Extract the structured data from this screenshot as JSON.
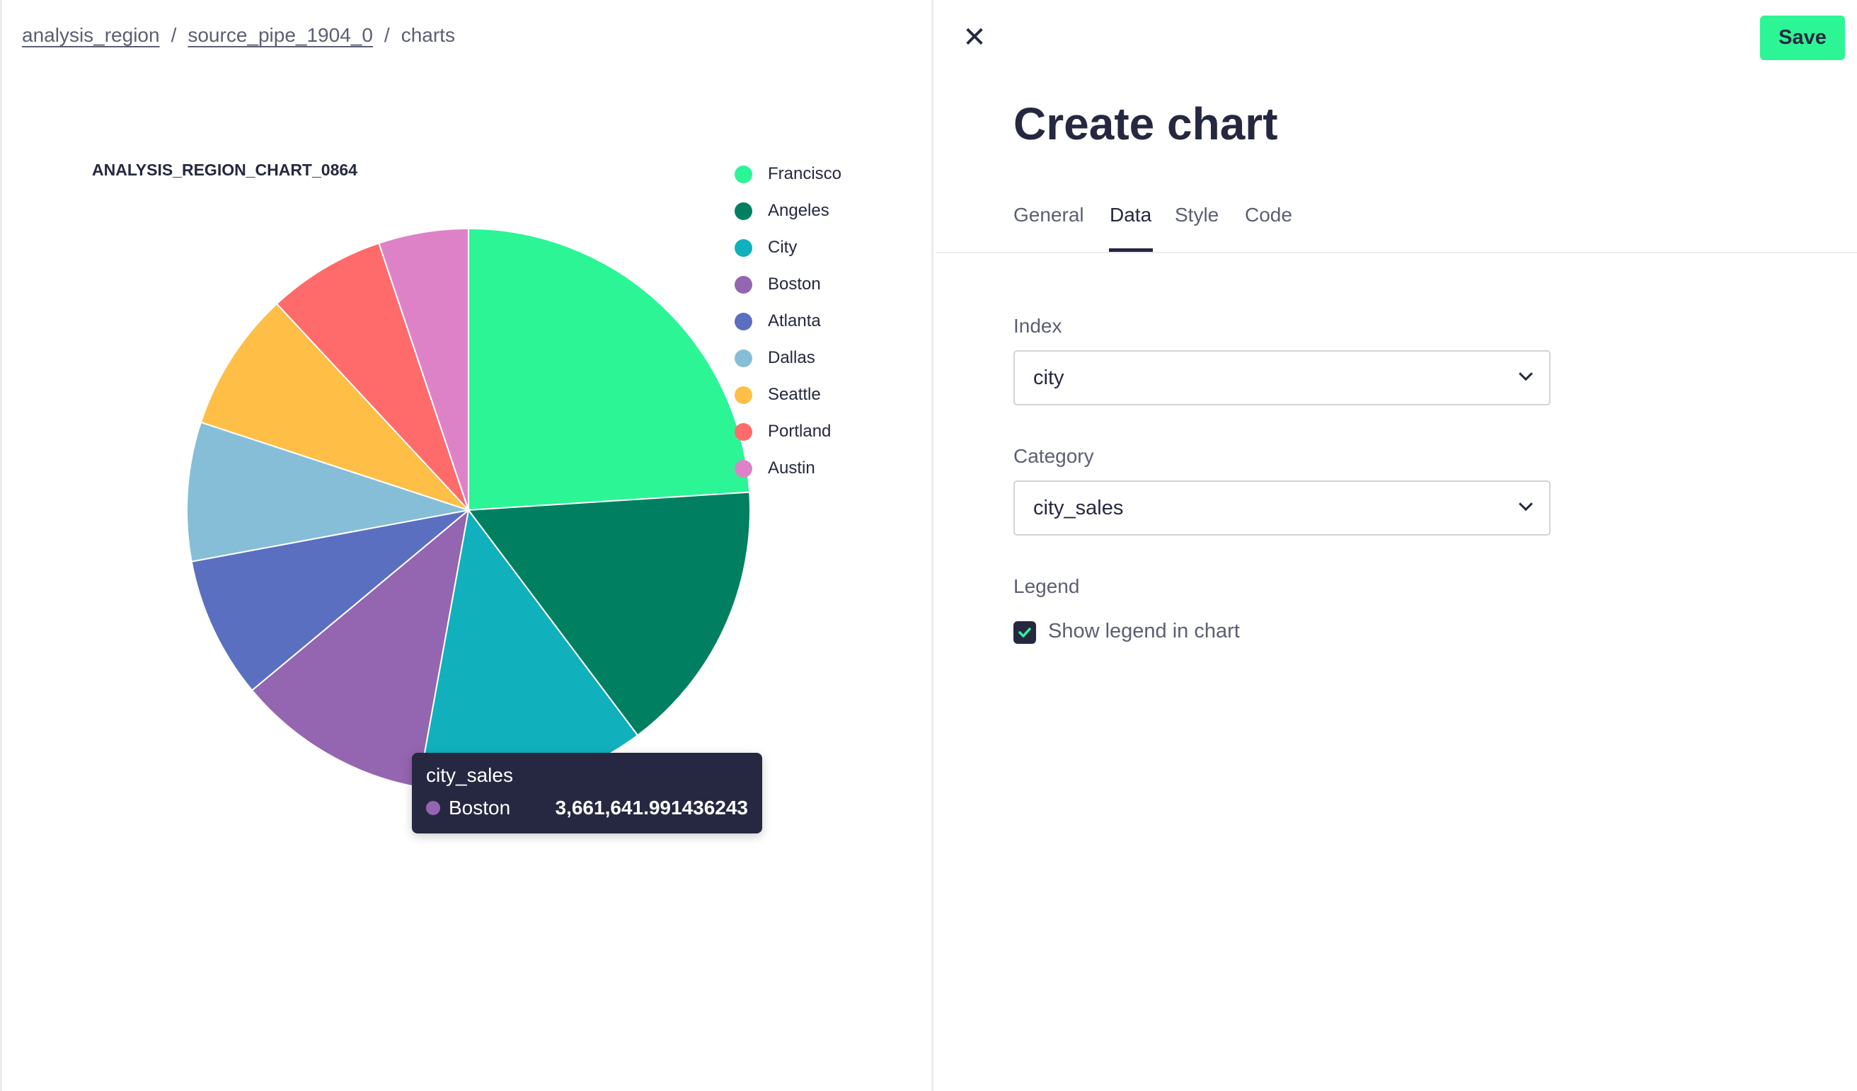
{
  "breadcrumb": [
    {
      "label": "analysis_region"
    },
    {
      "label": "source_pipe_1904_0"
    },
    {
      "label": "charts"
    }
  ],
  "breadcrumb_separator": "/",
  "chart_data": {
    "type": "pie",
    "title": "ANALYSIS_REGION_CHART_0864",
    "legend_position": "top-right",
    "categories": [
      "Francisco",
      "Angeles",
      "City",
      "Boston",
      "Atlanta",
      "Dallas",
      "Seattle",
      "Portland",
      "Austin"
    ],
    "values": [
      7910000,
      5200000,
      4320000,
      3661641.991436243,
      2680000,
      2630000,
      2650000,
      2230000,
      1700000
    ],
    "colors": [
      "#2cf596",
      "#008060",
      "#10b0bc",
      "#9465b0",
      "#5a6fc0",
      "#86bed8",
      "#ffbe45",
      "#ff6b6b",
      "#de82c8"
    ],
    "tooltip": {
      "series": "city_sales",
      "category": "Boston",
      "value": "3,661,641.991436243"
    }
  },
  "panel": {
    "close_icon": "close-icon",
    "save_label": "Save",
    "save_color": "#2cf596",
    "title": "Create chart",
    "tabs": [
      {
        "label": "General"
      },
      {
        "label": "Data",
        "active": true
      },
      {
        "label": "Style"
      },
      {
        "label": "Code"
      }
    ],
    "index": {
      "label": "Index",
      "value": "city"
    },
    "category": {
      "label": "Category",
      "value": "city_sales"
    },
    "legend": {
      "label": "Legend",
      "checkbox_label": "Show legend in chart",
      "checked": true
    }
  }
}
